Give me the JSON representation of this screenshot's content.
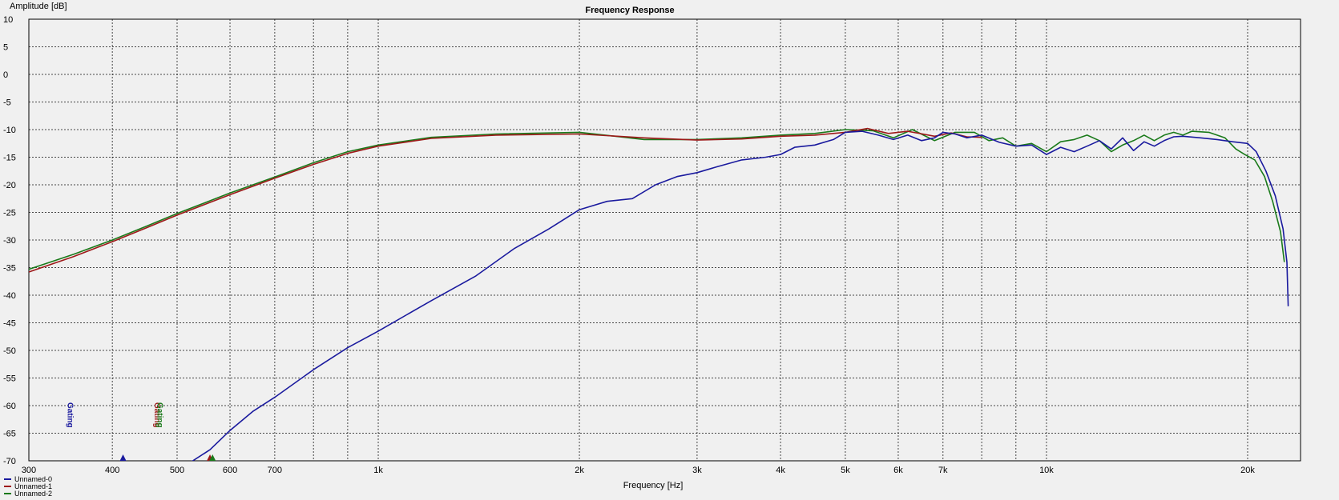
{
  "chart_data": {
    "type": "line",
    "title": "Frequency Response",
    "xlabel": "Frequency [Hz]",
    "ylabel": "Amplitude [dB]",
    "x_scale": "log",
    "xlim": [
      300,
      24000
    ],
    "ylim": [
      -70,
      10
    ],
    "grid": true,
    "y_ticks": [
      10,
      5,
      0,
      -5,
      -10,
      -15,
      -20,
      -25,
      -30,
      -35,
      -40,
      -45,
      -50,
      -55,
      -60,
      -65,
      -70
    ],
    "x_tick_labels": [
      {
        "value": 300,
        "label": "300"
      },
      {
        "value": 400,
        "label": "400"
      },
      {
        "value": 500,
        "label": "500"
      },
      {
        "value": 600,
        "label": "600"
      },
      {
        "value": 700,
        "label": "700"
      },
      {
        "value": 1000,
        "label": "1k"
      },
      {
        "value": 2000,
        "label": "2k"
      },
      {
        "value": 3000,
        "label": "3k"
      },
      {
        "value": 4000,
        "label": "4k"
      },
      {
        "value": 5000,
        "label": "5k"
      },
      {
        "value": 6000,
        "label": "6k"
      },
      {
        "value": 7000,
        "label": "7k"
      },
      {
        "value": 10000,
        "label": "10k"
      },
      {
        "value": 20000,
        "label": "20k"
      }
    ],
    "x_minor_grid": [
      800,
      900,
      8000,
      9000
    ],
    "legend_position": "bottom-left",
    "series": [
      {
        "name": "Unnamed-0",
        "color": "#1a1a9e",
        "points": [
          [
            520,
            -70.5
          ],
          [
            560,
            -68
          ],
          [
            600,
            -64.5
          ],
          [
            650,
            -61
          ],
          [
            700,
            -58.5
          ],
          [
            800,
            -53.5
          ],
          [
            900,
            -49.5
          ],
          [
            1000,
            -46.5
          ],
          [
            1200,
            -41
          ],
          [
            1400,
            -36.5
          ],
          [
            1600,
            -31.5
          ],
          [
            1800,
            -28
          ],
          [
            2000,
            -24.5
          ],
          [
            2200,
            -23
          ],
          [
            2400,
            -22.5
          ],
          [
            2600,
            -20
          ],
          [
            2800,
            -18.5
          ],
          [
            3000,
            -17.8
          ],
          [
            3200,
            -16.8
          ],
          [
            3500,
            -15.5
          ],
          [
            3800,
            -15
          ],
          [
            4000,
            -14.5
          ],
          [
            4200,
            -13.2
          ],
          [
            4500,
            -12.8
          ],
          [
            4800,
            -11.8
          ],
          [
            5000,
            -10.5
          ],
          [
            5300,
            -10.3
          ],
          [
            5600,
            -11
          ],
          [
            5900,
            -11.8
          ],
          [
            6200,
            -11
          ],
          [
            6500,
            -12
          ],
          [
            6800,
            -11.5
          ],
          [
            7000,
            -10.5
          ],
          [
            7300,
            -10.8
          ],
          [
            7600,
            -11.5
          ],
          [
            8000,
            -11
          ],
          [
            8500,
            -12.3
          ],
          [
            9000,
            -13
          ],
          [
            9500,
            -12.8
          ],
          [
            10000,
            -14.5
          ],
          [
            10500,
            -13.2
          ],
          [
            11000,
            -14
          ],
          [
            11500,
            -13
          ],
          [
            12000,
            -12
          ],
          [
            12500,
            -13.5
          ],
          [
            13000,
            -11.5
          ],
          [
            13500,
            -13.8
          ],
          [
            14000,
            -12.2
          ],
          [
            14500,
            -13
          ],
          [
            15000,
            -12
          ],
          [
            15500,
            -11.3
          ],
          [
            16000,
            -11.2
          ],
          [
            17000,
            -11.5
          ],
          [
            18000,
            -11.8
          ],
          [
            19000,
            -12.2
          ],
          [
            20000,
            -12.5
          ],
          [
            20600,
            -14
          ],
          [
            21300,
            -17.5
          ],
          [
            22000,
            -22
          ],
          [
            22600,
            -28
          ],
          [
            22900,
            -34
          ],
          [
            23000,
            -42
          ]
        ]
      },
      {
        "name": "Unnamed-1",
        "color": "#9e1a1a",
        "points": [
          [
            300,
            -35.8
          ],
          [
            350,
            -33
          ],
          [
            400,
            -30.3
          ],
          [
            450,
            -27.8
          ],
          [
            500,
            -25.5
          ],
          [
            600,
            -21.8
          ],
          [
            700,
            -18.8
          ],
          [
            800,
            -16.3
          ],
          [
            900,
            -14.3
          ],
          [
            1000,
            -13
          ],
          [
            1200,
            -11.6
          ],
          [
            1500,
            -11
          ],
          [
            2000,
            -10.8
          ],
          [
            2500,
            -11.5
          ],
          [
            3000,
            -11.9
          ],
          [
            3500,
            -11.7
          ],
          [
            4000,
            -11.2
          ],
          [
            4500,
            -11
          ],
          [
            5000,
            -10.5
          ],
          [
            5400,
            -9.8
          ],
          [
            5800,
            -10.7
          ],
          [
            6200,
            -10.3
          ],
          [
            6800,
            -11.2
          ],
          [
            7200,
            -10.6
          ],
          [
            7600,
            -11.3
          ],
          [
            8000,
            -11.4
          ]
        ]
      },
      {
        "name": "Unnamed-2",
        "color": "#1a7a1a",
        "points": [
          [
            300,
            -35.3
          ],
          [
            350,
            -32.6
          ],
          [
            400,
            -30
          ],
          [
            450,
            -27.5
          ],
          [
            500,
            -25.2
          ],
          [
            600,
            -21.5
          ],
          [
            700,
            -18.6
          ],
          [
            800,
            -16
          ],
          [
            900,
            -14
          ],
          [
            1000,
            -12.8
          ],
          [
            1200,
            -11.4
          ],
          [
            1500,
            -10.8
          ],
          [
            2000,
            -10.5
          ],
          [
            2500,
            -11.8
          ],
          [
            3000,
            -11.8
          ],
          [
            3500,
            -11.5
          ],
          [
            4000,
            -11
          ],
          [
            4500,
            -10.7
          ],
          [
            5000,
            -10
          ],
          [
            5500,
            -10.2
          ],
          [
            5900,
            -11.5
          ],
          [
            6300,
            -10
          ],
          [
            6800,
            -12
          ],
          [
            7300,
            -10.5
          ],
          [
            7800,
            -10.5
          ],
          [
            8200,
            -12
          ],
          [
            8600,
            -11.5
          ],
          [
            9000,
            -13
          ],
          [
            9500,
            -12.5
          ],
          [
            10000,
            -14
          ],
          [
            10500,
            -12.2
          ],
          [
            11000,
            -11.8
          ],
          [
            11500,
            -11
          ],
          [
            12000,
            -12
          ],
          [
            12500,
            -14
          ],
          [
            13000,
            -12.8
          ],
          [
            13500,
            -12
          ],
          [
            14000,
            -11
          ],
          [
            14500,
            -12
          ],
          [
            15000,
            -11
          ],
          [
            15500,
            -10.5
          ],
          [
            16000,
            -11
          ],
          [
            16500,
            -10.3
          ],
          [
            17500,
            -10.5
          ],
          [
            18000,
            -11
          ],
          [
            18500,
            -11.5
          ],
          [
            19200,
            -13.5
          ],
          [
            19800,
            -14.5
          ],
          [
            20500,
            -15.5
          ],
          [
            21200,
            -18.5
          ],
          [
            21800,
            -23
          ],
          [
            22400,
            -28.5
          ],
          [
            22700,
            -34
          ]
        ]
      }
    ],
    "gating_markers": [
      {
        "x": 415,
        "color": "#1a1a9e",
        "label": "Gating"
      },
      {
        "x": 560,
        "color": "#9e1a1a",
        "label": "Gating"
      },
      {
        "x": 565,
        "color": "#1a7a1a",
        "label": "Gating"
      }
    ]
  }
}
